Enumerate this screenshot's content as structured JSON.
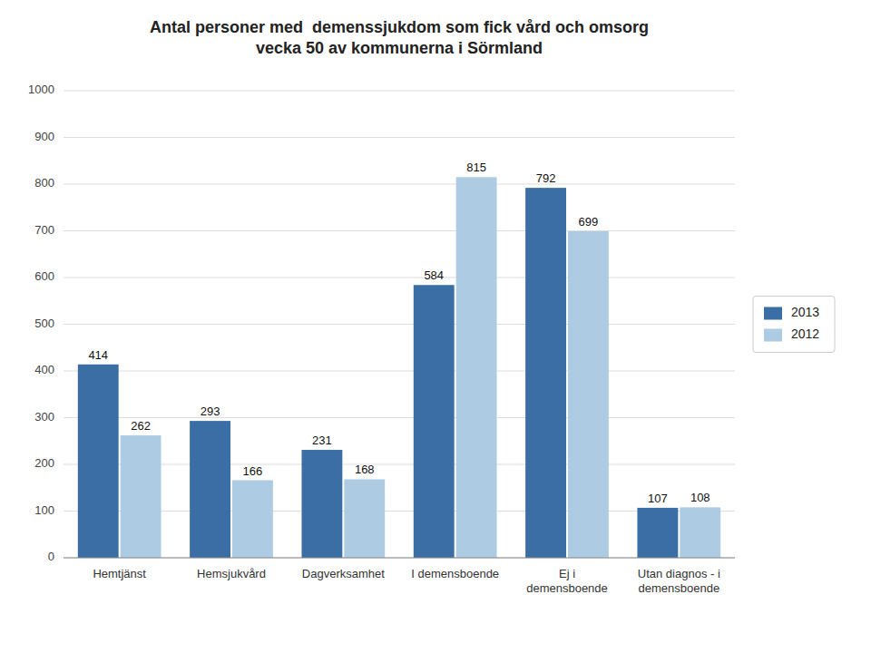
{
  "chart_data": {
    "type": "bar",
    "title": "Antal personer med  demenssjukdom som fick vård och omsorg\nvecka 50 av kommunerna i Sörmland",
    "categories": [
      "Hemtjänst",
      "Hemsjukvård",
      "Dagverksamhet",
      "I demensboende",
      "Ej i\ndemensboende",
      "Utan diagnos - i\ndemensboende"
    ],
    "series": [
      {
        "name": "2013",
        "color": "#3A6EA5",
        "values": [
          414,
          293,
          231,
          584,
          792,
          107
        ]
      },
      {
        "name": "2012",
        "color": "#ADCBE3",
        "values": [
          262,
          166,
          168,
          815,
          699,
          108
        ]
      }
    ],
    "ylim": [
      0,
      1000
    ],
    "yticks": [
      0,
      100,
      200,
      300,
      400,
      500,
      600,
      700,
      800,
      900,
      1000
    ],
    "grid": true,
    "legend": "right",
    "data_labels": true
  }
}
